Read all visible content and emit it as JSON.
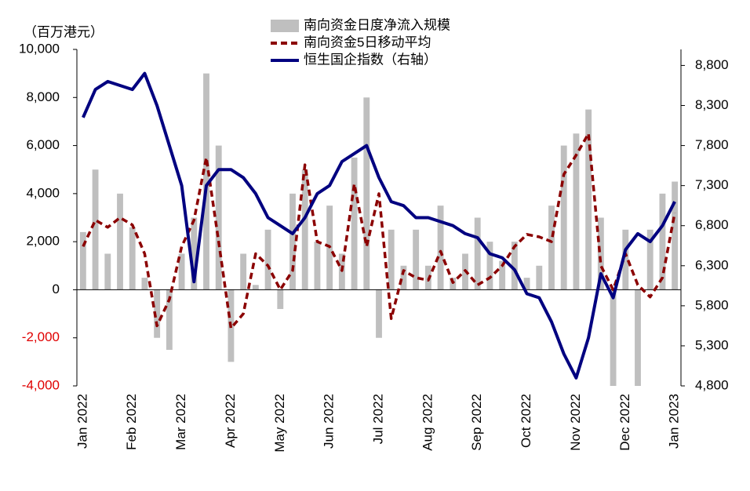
{
  "chart_data": {
    "type": "combo",
    "y_label": "（百万港元）",
    "categories": [
      "Jan 2022",
      null,
      null,
      null,
      "Feb 2022",
      null,
      null,
      null,
      "Mar 2022",
      null,
      null,
      null,
      "Apr 2022",
      null,
      null,
      null,
      "May 2022",
      null,
      null,
      null,
      "Jun 2022",
      null,
      null,
      null,
      "Jul 2022",
      null,
      null,
      null,
      "Aug 2022",
      null,
      null,
      null,
      "Sep 2022",
      null,
      null,
      null,
      "Oct 2022",
      null,
      null,
      null,
      "Nov 2022",
      null,
      null,
      null,
      "Dec 2022",
      null,
      null,
      null,
      "Jan 2023"
    ],
    "series": [
      {
        "name": "南向资金日度净流入规模",
        "type": "bar",
        "color": "#bfbfbf",
        "values": [
          2400,
          5000,
          1500,
          4000,
          2600,
          500,
          -2000,
          -2500,
          1500,
          3000,
          9000,
          6000,
          -3000,
          1500,
          200,
          2500,
          -800,
          4000,
          5000,
          2000,
          3500,
          1500,
          5500,
          8000,
          -2000,
          2500,
          1000,
          2500,
          1000,
          3500,
          500,
          1500,
          3000,
          2000,
          1200,
          2000,
          500,
          1000,
          3500,
          6000,
          6500,
          7500,
          3000,
          -4000,
          2500,
          -4000,
          2500,
          4000,
          4500
        ]
      },
      {
        "name": "南向资金5日移动平均",
        "type": "line",
        "style": "dashed",
        "color": "#8b0000",
        "values": [
          1800,
          2900,
          2600,
          3000,
          2700,
          1500,
          -1500,
          -400,
          1800,
          2900,
          5500,
          2000,
          -1600,
          -1000,
          1500,
          1000,
          0,
          800,
          5200,
          2000,
          1800,
          800,
          4400,
          1800,
          4000,
          -1200,
          800,
          500,
          400,
          1600,
          300,
          800,
          200,
          500,
          1000,
          1800,
          2300,
          2200,
          2000,
          4800,
          5600,
          6500,
          1000,
          0,
          1500,
          200,
          -300,
          500,
          3200
        ]
      },
      {
        "name": "恒生国企指数（右轴）",
        "type": "line",
        "style": "solid",
        "axis": "y2",
        "color": "#000080",
        "values": [
          8150,
          8500,
          8600,
          8550,
          8500,
          8700,
          8300,
          7800,
          7300,
          6100,
          7300,
          7500,
          7500,
          7400,
          7200,
          6900,
          6800,
          6700,
          6900,
          7200,
          7300,
          7600,
          7700,
          7800,
          7400,
          7100,
          7050,
          6900,
          6900,
          6850,
          6800,
          6700,
          6650,
          6450,
          6400,
          6250,
          5950,
          5900,
          5600,
          5200,
          4900,
          5400,
          6200,
          5900,
          6500,
          6700,
          6600,
          6800,
          7100
        ]
      }
    ],
    "ylim": [
      -4000,
      10000
    ],
    "yticks": [
      {
        "value": -4000,
        "label": "-4,000"
      },
      {
        "value": -2000,
        "label": "-2,000"
      },
      0,
      {
        "value": 2000,
        "label": "2,000"
      },
      {
        "value": 4000,
        "label": "4,000"
      },
      {
        "value": 6000,
        "label": "6,000"
      },
      {
        "value": 8000,
        "label": "8,000"
      },
      {
        "value": 10000,
        "label": "10,000"
      }
    ],
    "negative_tick_color": "#e00000",
    "y2lim": [
      4800,
      9000
    ],
    "y2ticks": [
      {
        "value": 4800,
        "label": "4,800"
      },
      {
        "value": 5300,
        "label": "5,300"
      },
      {
        "value": 5800,
        "label": "5,800"
      },
      {
        "value": 6300,
        "label": "6,300"
      },
      {
        "value": 6800,
        "label": "6,800"
      },
      {
        "value": 7300,
        "label": "7,300"
      },
      {
        "value": 7800,
        "label": "7,800"
      },
      {
        "value": 8300,
        "label": "8,300"
      },
      {
        "value": 8800,
        "label": "8,800"
      }
    ]
  }
}
